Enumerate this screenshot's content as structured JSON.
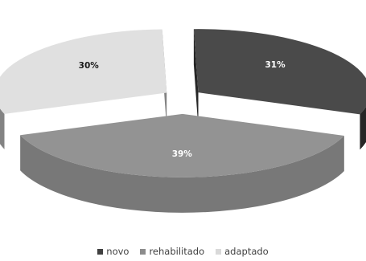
{
  "chart_data": {
    "type": "pie",
    "style": "3d-exploded",
    "title": "",
    "categories": [
      "novo",
      "rehabilitado",
      "adaptado"
    ],
    "values": [
      31,
      39,
      30
    ],
    "labels": [
      "31%",
      "39%",
      "30%"
    ],
    "legend": "bottom",
    "colors": {
      "top": [
        "#4a4a4a",
        "#939393",
        "#e0e0e0"
      ],
      "side": [
        "#262626",
        "#787878",
        "#838383"
      ],
      "label": [
        "#ffffff",
        "#ffffff",
        "#1a1a1a"
      ],
      "swatch": [
        "#404040",
        "#8c8c8c",
        "#d9d9d9"
      ]
    }
  }
}
